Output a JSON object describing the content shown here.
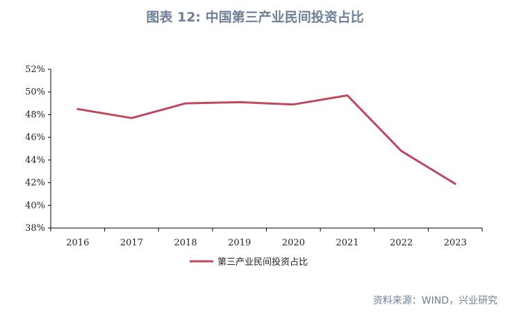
{
  "title": "图表 12: 中国第三产业民间投资占比",
  "source": "资料来源：WIND，兴业研究",
  "colors": {
    "series": "#c0485e",
    "title": "#6e7f99",
    "axis": "#000000"
  },
  "chart_data": {
    "type": "line",
    "title": "图表 12: 中国第三产业民间投资占比",
    "categories": [
      "2016",
      "2017",
      "2018",
      "2019",
      "2020",
      "2021",
      "2022",
      "2023"
    ],
    "series": [
      {
        "name": "第三产业民间投资占比",
        "values": [
          48.5,
          47.7,
          49.0,
          49.1,
          48.9,
          49.7,
          44.8,
          41.9
        ]
      }
    ],
    "ylim": [
      38,
      52
    ],
    "yticks": [
      38,
      40,
      42,
      44,
      46,
      48,
      50,
      52
    ],
    "ytick_labels": [
      "38%",
      "40%",
      "42%",
      "44%",
      "46%",
      "48%",
      "50%",
      "52%"
    ],
    "grid": false,
    "legend_position": "bottom-center"
  }
}
